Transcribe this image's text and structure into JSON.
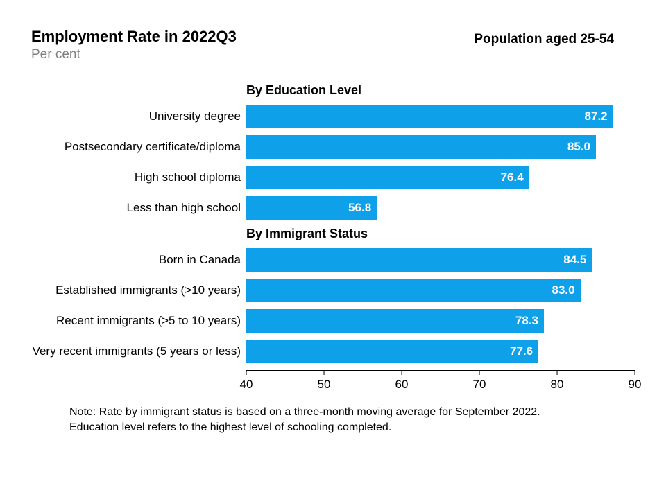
{
  "header": {
    "title": "Employment Rate in 2022Q3",
    "subtitle": "Per cent",
    "population_note": "Population aged 25-54"
  },
  "chart": {
    "type": "bar",
    "x_min": 40,
    "x_max": 90,
    "x_ticks": [
      40,
      50,
      60,
      70,
      80,
      90
    ],
    "bar_color": "#0ea0e9",
    "value_text_color": "#ffffff",
    "background_color": "#ffffff",
    "axis_color": "#000000",
    "label_fontsize": 17,
    "value_fontsize": 17,
    "section_fontsize": 18,
    "sections": [
      {
        "title": "By Education Level",
        "bars": [
          {
            "label": "University degree",
            "value": 87.2,
            "value_text": "87.2"
          },
          {
            "label": "Postsecondary certificate/diploma",
            "value": 85.0,
            "value_text": "85.0"
          },
          {
            "label": "High school diploma",
            "value": 76.4,
            "value_text": "76.4"
          },
          {
            "label": "Less than high school",
            "value": 56.8,
            "value_text": "56.8"
          }
        ]
      },
      {
        "title": "By Immigrant Status",
        "bars": [
          {
            "label": "Born in Canada",
            "value": 84.5,
            "value_text": "84.5"
          },
          {
            "label": "Established immigrants (>10 years)",
            "value": 83.0,
            "value_text": "83.0"
          },
          {
            "label": "Recent immigrants (>5 to 10 years)",
            "value": 78.3,
            "value_text": "78.3"
          },
          {
            "label": "Very recent immigrants (5 years or less)",
            "value": 77.6,
            "value_text": "77.6"
          }
        ]
      }
    ]
  },
  "footnote": {
    "line1": "Note: Rate by immigrant status is based on a three-month moving average for September 2022.",
    "line2": "Education level refers to the highest level of schooling completed."
  }
}
